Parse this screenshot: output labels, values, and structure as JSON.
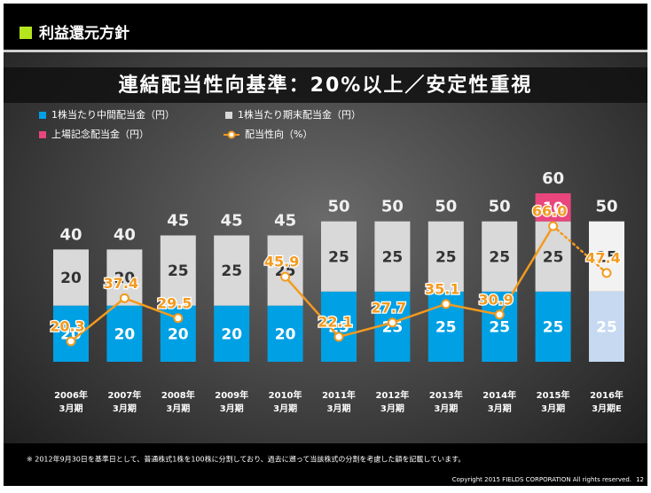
{
  "header": {
    "title": "利益還元方針"
  },
  "chart_data": {
    "type": "bar",
    "stacked": true,
    "title": "連結配当性向基準：20%以上／安定性重視",
    "categories": [
      [
        "2006年",
        "3月期"
      ],
      [
        "2007年",
        "3月期"
      ],
      [
        "2008年",
        "3月期"
      ],
      [
        "2009年",
        "3月期"
      ],
      [
        "2010年",
        "3月期"
      ],
      [
        "2011年",
        "3月期"
      ],
      [
        "2012年",
        "3月期"
      ],
      [
        "2013年",
        "3月期"
      ],
      [
        "2014年",
        "3月期"
      ],
      [
        "2015年",
        "3月期"
      ],
      [
        "2016年",
        "3月期E"
      ]
    ],
    "series": [
      {
        "name": "1株当たり中間配当金（円）",
        "color": "#00a0e4",
        "colors": [
          "#00a0e4",
          "#00a0e4",
          "#00a0e4",
          "#00a0e4",
          "#00a0e4",
          "#00a0e4",
          "#00a0e4",
          "#00a0e4",
          "#00a0e4",
          "#00a0e4",
          "#c6d9f1"
        ],
        "label_color": "#ffffff",
        "values": [
          20,
          20,
          20,
          20,
          20,
          25,
          25,
          25,
          25,
          25,
          25
        ]
      },
      {
        "name": "1株当たり期末配当金（円）",
        "color": "#d9d9d9",
        "colors": [
          "#d9d9d9",
          "#d9d9d9",
          "#d9d9d9",
          "#d9d9d9",
          "#d9d9d9",
          "#d9d9d9",
          "#d9d9d9",
          "#d9d9d9",
          "#d9d9d9",
          "#d9d9d9",
          "#f2f2f2"
        ],
        "label_color": "#333333",
        "values": [
          20,
          20,
          25,
          25,
          25,
          25,
          25,
          25,
          25,
          25,
          25
        ]
      },
      {
        "name": "上場記念配当金（円）",
        "color": "#e8467c",
        "label_color": "#ffffff",
        "values": [
          null,
          null,
          null,
          null,
          null,
          null,
          null,
          null,
          null,
          10,
          null
        ]
      },
      {
        "name": "配当性向（%）",
        "type": "line",
        "axis": "y2",
        "color": "#f39a1e",
        "values": [
          20.3,
          37.4,
          29.5,
          null,
          45.9,
          22.1,
          27.7,
          35.1,
          30.9,
          66.0,
          47.4
        ],
        "value_labels": [
          "20.3",
          "37.4",
          "29.5",
          null,
          "45.9",
          "22.1",
          "27.7",
          "35.1",
          "30.9",
          "66.0",
          "47.4"
        ],
        "styles": [
          "solid",
          "solid",
          "solid",
          "solid",
          "solid",
          "solid",
          "solid",
          "solid",
          "solid",
          "solid",
          "dotted"
        ]
      }
    ],
    "totals": [
      40,
      40,
      45,
      45,
      45,
      50,
      50,
      50,
      50,
      60,
      50
    ],
    "ylim": [
      0,
      60
    ],
    "y2lim": [
      12.2,
      79
    ],
    "grid": false
  },
  "footnote": "※ 2012年9月30日を基準日として、普通株式1株を100株に分割しており、過去に遡って当該株式の分割を考慮した額を記載しています。",
  "copyright": "Copyright 2015 FIELDS CORPORATION All rights reserved.",
  "page_number": "12"
}
